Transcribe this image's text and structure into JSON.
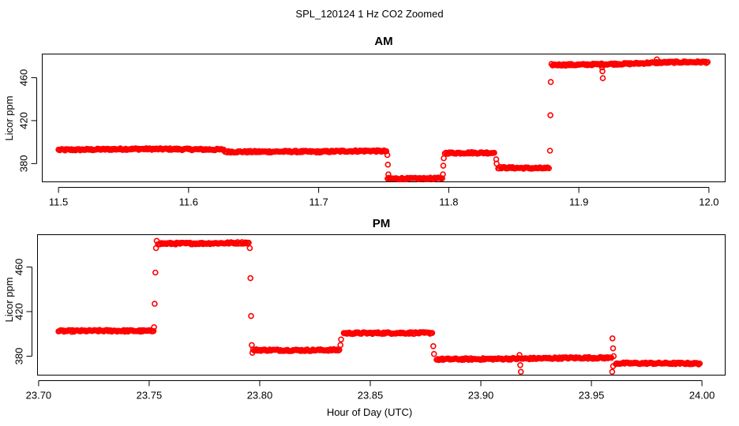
{
  "chart_data": {
    "title": "SPL_120124  1 Hz CO2 Zoomed",
    "xlabel": "Hour of Day (UTC)",
    "point_color": "#ff0000",
    "panels": [
      {
        "type": "scatter",
        "title": "AM",
        "ylabel": "Licor ppm",
        "xlim": [
          11.4875,
          12.0125
        ],
        "ylim": [
          363,
          482
        ],
        "xticks": [
          11.5,
          11.6,
          11.7,
          11.8,
          11.9,
          12.0
        ],
        "xtick_labels": [
          "11.5",
          "11.6",
          "11.7",
          "11.8",
          "11.9",
          "12.0"
        ],
        "yticks": [
          380,
          420,
          460
        ],
        "ytick_labels": [
          "380",
          "420",
          "460"
        ],
        "segments": [
          {
            "x": [
              11.5,
              11.52,
              11.54,
              11.56,
              11.58,
              11.6,
              11.627
            ],
            "y": [
              392.7,
              393.0,
              393.3,
              393.6,
              393.5,
              393.3,
              393.0
            ]
          },
          {
            "x": [
              11.628,
              11.65,
              11.68,
              11.7,
              11.72,
              11.74,
              11.752
            ],
            "y": [
              391.0,
              391.0,
              391.2,
              391.0,
              391.6,
              391.8,
              391.5
            ]
          },
          {
            "x": [
              11.753,
              11.775,
              11.795
            ],
            "y": [
              366.0,
              366.0,
              366.2
            ]
          },
          {
            "x": [
              11.797,
              11.815,
              11.835
            ],
            "y": [
              389.8,
              390.0,
              390.0
            ]
          },
          {
            "x": [
              11.838,
              11.86,
              11.877
            ],
            "y": [
              376.2,
              375.8,
              375.6
            ]
          },
          {
            "x": [
              11.879,
              11.9,
              11.92,
              11.94,
              11.96,
              11.98,
              11.999
            ],
            "y": [
              472.0,
              472.0,
              472.6,
              473.0,
              474.0,
              474.5,
              474.5
            ]
          }
        ],
        "transitions": [
          {
            "x": 11.7528,
            "y": 388.0
          },
          {
            "x": 11.7532,
            "y": 379.0
          },
          {
            "x": 11.7536,
            "y": 370.0
          },
          {
            "x": 11.7955,
            "y": 370.0
          },
          {
            "x": 11.7958,
            "y": 378.0
          },
          {
            "x": 11.7962,
            "y": 385.0
          },
          {
            "x": 11.8365,
            "y": 384.0
          },
          {
            "x": 11.8368,
            "y": 380.0
          },
          {
            "x": 11.8778,
            "y": 392.0
          },
          {
            "x": 11.8781,
            "y": 425.0
          },
          {
            "x": 11.8784,
            "y": 456.0
          },
          {
            "x": 11.9175,
            "y": 472.5
          },
          {
            "x": 11.9178,
            "y": 469.5
          },
          {
            "x": 11.9181,
            "y": 466.0
          },
          {
            "x": 11.9184,
            "y": 459.5
          },
          {
            "x": 11.96,
            "y": 477.0
          }
        ]
      },
      {
        "type": "scatter",
        "title": "PM",
        "ylabel": "Licor ppm",
        "xlim": [
          23.6995,
          24.0105
        ],
        "ylim": [
          363,
          489
        ],
        "xticks": [
          23.7,
          23.75,
          23.8,
          23.85,
          23.9,
          23.95,
          24.0
        ],
        "xtick_labels": [
          "23.70",
          "23.75",
          "23.80",
          "23.85",
          "23.90",
          "23.95",
          "24.00"
        ],
        "yticks": [
          380,
          420,
          460
        ],
        "ytick_labels": [
          "380",
          "420",
          "460"
        ],
        "segments": [
          {
            "x": [
              23.709,
              23.73,
              23.752
            ],
            "y": [
              402.5,
              402.8,
              402.6
            ]
          },
          {
            "x": [
              23.754,
              23.775,
              23.795
            ],
            "y": [
              481.0,
              481.2,
              481.8
            ]
          },
          {
            "x": [
              23.797,
              23.82,
              23.836
            ],
            "y": [
              385.5,
              385.3,
              385.6
            ]
          },
          {
            "x": [
              23.838,
              23.86,
              23.878
            ],
            "y": [
              400.6,
              400.8,
              400.8
            ]
          },
          {
            "x": [
              23.88,
              23.9,
              23.92,
              23.94,
              23.959
            ],
            "y": [
              377.2,
              377.4,
              377.8,
              378.4,
              378.5
            ]
          },
          {
            "x": [
              23.961,
              23.98,
              23.999
            ],
            "y": [
              373.6,
              373.6,
              373.4
            ]
          }
        ],
        "transitions": [
          {
            "x": 23.7522,
            "y": 406.0
          },
          {
            "x": 23.7525,
            "y": 427.0
          },
          {
            "x": 23.7528,
            "y": 455.0
          },
          {
            "x": 23.7531,
            "y": 477.0
          },
          {
            "x": 23.7534,
            "y": 483.5
          },
          {
            "x": 23.7955,
            "y": 477.0
          },
          {
            "x": 23.7958,
            "y": 450.0
          },
          {
            "x": 23.7961,
            "y": 416.0
          },
          {
            "x": 23.7964,
            "y": 390.0
          },
          {
            "x": 23.7967,
            "y": 383.0
          },
          {
            "x": 23.8365,
            "y": 390.0
          },
          {
            "x": 23.8368,
            "y": 395.0
          },
          {
            "x": 23.8785,
            "y": 389.0
          },
          {
            "x": 23.8788,
            "y": 382.0
          },
          {
            "x": 23.9175,
            "y": 381.0
          },
          {
            "x": 23.9178,
            "y": 372.0
          },
          {
            "x": 23.9181,
            "y": 366.0
          },
          {
            "x": 23.9595,
            "y": 396.0
          },
          {
            "x": 23.9598,
            "y": 387.0
          },
          {
            "x": 23.9601,
            "y": 380.0
          },
          {
            "x": 23.9598,
            "y": 371.0
          },
          {
            "x": 23.9594,
            "y": 366.0
          }
        ]
      }
    ]
  }
}
